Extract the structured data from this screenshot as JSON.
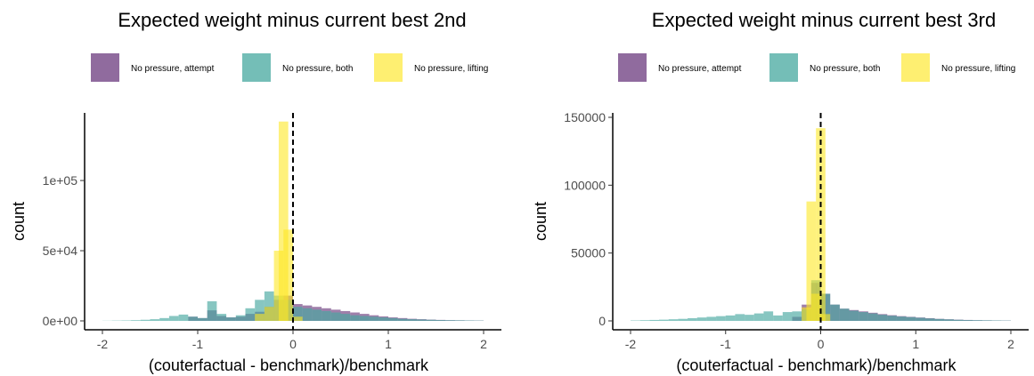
{
  "colors": {
    "attempt": "#6b3a7d",
    "both": "#46a89f",
    "lifting": "#fde725",
    "axis": "#000000",
    "tick_text": "#4d4d4d"
  },
  "chart_data": [
    {
      "type": "histogram",
      "title": "Expected weight minus current best 2nd",
      "xlabel": "(couterfactual - benchmark)/benchmark",
      "ylabel": "count",
      "xlim": [
        -2,
        2
      ],
      "ylim": [
        0,
        145000
      ],
      "x_ticks": [
        -2,
        -1,
        0,
        1,
        2
      ],
      "x_tick_labels": [
        "-2",
        "-1",
        "0",
        "1",
        "2"
      ],
      "y_ticks": [
        0,
        50000,
        100000
      ],
      "y_tick_labels": [
        "0e+00",
        "5e+04",
        "1e+05"
      ],
      "vline": 0,
      "legend_position": "top",
      "series": [
        {
          "name": "No pressure, attempt",
          "color_key": "attempt",
          "bins": [
            [
              -1.05,
              3000
            ],
            [
              -0.95,
              2000
            ],
            [
              -0.85,
              7500
            ],
            [
              -0.75,
              3500
            ],
            [
              -0.65,
              2500
            ],
            [
              -0.55,
              3000
            ],
            [
              -0.45,
              5000
            ],
            [
              -0.35,
              6500
            ],
            [
              -0.25,
              10000
            ],
            [
              -0.15,
              15000
            ],
            [
              -0.05,
              18000
            ],
            [
              0.05,
              12000
            ],
            [
              0.15,
              11000
            ],
            [
              0.25,
              10000
            ],
            [
              0.35,
              9000
            ],
            [
              0.45,
              8000
            ],
            [
              0.55,
              7000
            ],
            [
              0.65,
              6000
            ],
            [
              0.75,
              5000
            ],
            [
              0.85,
              4000
            ],
            [
              0.95,
              3200
            ],
            [
              1.05,
              2500
            ],
            [
              1.15,
              2000
            ],
            [
              1.25,
              1500
            ],
            [
              1.35,
              1200
            ],
            [
              1.45,
              900
            ],
            [
              1.55,
              700
            ],
            [
              1.65,
              500
            ],
            [
              1.75,
              400
            ],
            [
              1.85,
              300
            ],
            [
              1.95,
              200
            ]
          ]
        },
        {
          "name": "No pressure, both",
          "color_key": "both",
          "bins": [
            [
              -1.95,
              100
            ],
            [
              -1.85,
              200
            ],
            [
              -1.75,
              300
            ],
            [
              -1.65,
              500
            ],
            [
              -1.55,
              800
            ],
            [
              -1.45,
              1200
            ],
            [
              -1.35,
              2000
            ],
            [
              -1.25,
              3500
            ],
            [
              -1.15,
              4500
            ],
            [
              -1.05,
              3000
            ],
            [
              -0.95,
              2000
            ],
            [
              -0.85,
              14000
            ],
            [
              -0.75,
              5000
            ],
            [
              -0.65,
              2500
            ],
            [
              -0.55,
              4000
            ],
            [
              -0.45,
              9000
            ],
            [
              -0.35,
              15000
            ],
            [
              -0.25,
              21000
            ],
            [
              -0.15,
              18000
            ],
            [
              -0.05,
              15000
            ],
            [
              0.05,
              10000
            ],
            [
              0.15,
              9000
            ],
            [
              0.25,
              8000
            ],
            [
              0.35,
              7000
            ],
            [
              0.45,
              6000
            ],
            [
              0.55,
              5000
            ],
            [
              0.65,
              4000
            ],
            [
              0.75,
              3500
            ],
            [
              0.85,
              3000
            ],
            [
              0.95,
              2500
            ],
            [
              1.05,
              2000
            ],
            [
              1.15,
              1500
            ],
            [
              1.25,
              1200
            ],
            [
              1.35,
              1000
            ],
            [
              1.45,
              800
            ],
            [
              1.55,
              600
            ],
            [
              1.65,
              500
            ],
            [
              1.75,
              400
            ],
            [
              1.85,
              300
            ],
            [
              1.95,
              200
            ]
          ]
        },
        {
          "name": "No pressure, lifting",
          "color_key": "lifting",
          "bins": [
            [
              -0.35,
              5000
            ],
            [
              -0.25,
              10000
            ],
            [
              -0.15,
              50000
            ],
            [
              -0.1,
              142000
            ],
            [
              -0.05,
              65000
            ],
            [
              0.05,
              3000
            ]
          ]
        }
      ]
    },
    {
      "type": "histogram",
      "title": "Expected weight minus current best 3rd",
      "xlabel": "(couterfactual - benchmark)/benchmark",
      "ylabel": "count",
      "xlim": [
        -2,
        2
      ],
      "ylim": [
        0,
        150000
      ],
      "x_ticks": [
        -2,
        -1,
        0,
        1,
        2
      ],
      "x_tick_labels": [
        "-2",
        "-1",
        "0",
        "1",
        "2"
      ],
      "y_ticks": [
        0,
        50000,
        100000,
        150000
      ],
      "y_tick_labels": [
        "0",
        "50000",
        "100000",
        "150000"
      ],
      "vline": 0,
      "legend_position": "top",
      "series": [
        {
          "name": "No pressure, attempt",
          "color_key": "attempt",
          "bins": [
            [
              -0.25,
              3000
            ],
            [
              -0.15,
              12000
            ],
            [
              -0.05,
              28000
            ],
            [
              0.05,
              20000
            ],
            [
              0.15,
              12000
            ],
            [
              0.25,
              9000
            ],
            [
              0.35,
              8000
            ],
            [
              0.45,
              7000
            ],
            [
              0.55,
              6000
            ],
            [
              0.65,
              5000
            ],
            [
              0.75,
              4200
            ],
            [
              0.85,
              3500
            ],
            [
              0.95,
              3000
            ],
            [
              1.05,
              2500
            ],
            [
              1.15,
              2000
            ],
            [
              1.25,
              1500
            ],
            [
              1.35,
              1200
            ],
            [
              1.45,
              900
            ],
            [
              1.55,
              700
            ],
            [
              1.65,
              500
            ],
            [
              1.75,
              400
            ],
            [
              1.85,
              300
            ],
            [
              1.95,
              200
            ]
          ]
        },
        {
          "name": "No pressure, both",
          "color_key": "both",
          "bins": [
            [
              -1.95,
              300
            ],
            [
              -1.85,
              500
            ],
            [
              -1.75,
              700
            ],
            [
              -1.65,
              900
            ],
            [
              -1.55,
              1200
            ],
            [
              -1.45,
              1500
            ],
            [
              -1.35,
              2000
            ],
            [
              -1.25,
              2500
            ],
            [
              -1.15,
              3000
            ],
            [
              -1.05,
              3500
            ],
            [
              -0.95,
              4000
            ],
            [
              -0.85,
              5000
            ],
            [
              -0.75,
              4500
            ],
            [
              -0.65,
              5500
            ],
            [
              -0.55,
              7000
            ],
            [
              -0.45,
              4000
            ],
            [
              -0.35,
              6500
            ],
            [
              -0.25,
              7000
            ],
            [
              -0.15,
              8500
            ],
            [
              -0.05,
              30000
            ],
            [
              0.05,
              20000
            ],
            [
              0.15,
              12000
            ],
            [
              0.25,
              9000
            ],
            [
              0.35,
              7500
            ],
            [
              0.45,
              6500
            ],
            [
              0.55,
              5500
            ],
            [
              0.65,
              4500
            ],
            [
              0.75,
              3800
            ],
            [
              0.85,
              3200
            ],
            [
              0.95,
              2800
            ],
            [
              1.05,
              2300
            ],
            [
              1.15,
              1800
            ],
            [
              1.25,
              1400
            ],
            [
              1.35,
              1100
            ],
            [
              1.45,
              800
            ],
            [
              1.55,
              600
            ],
            [
              1.65,
              500
            ],
            [
              1.75,
              400
            ],
            [
              1.85,
              300
            ],
            [
              1.95,
              200
            ]
          ]
        },
        {
          "name": "No pressure, lifting",
          "color_key": "lifting",
          "bins": [
            [
              -0.15,
              10000
            ],
            [
              -0.1,
              88000
            ],
            [
              -0.05,
              20000
            ],
            [
              0.0,
              142000
            ],
            [
              0.05,
              5000
            ]
          ]
        }
      ]
    }
  ]
}
